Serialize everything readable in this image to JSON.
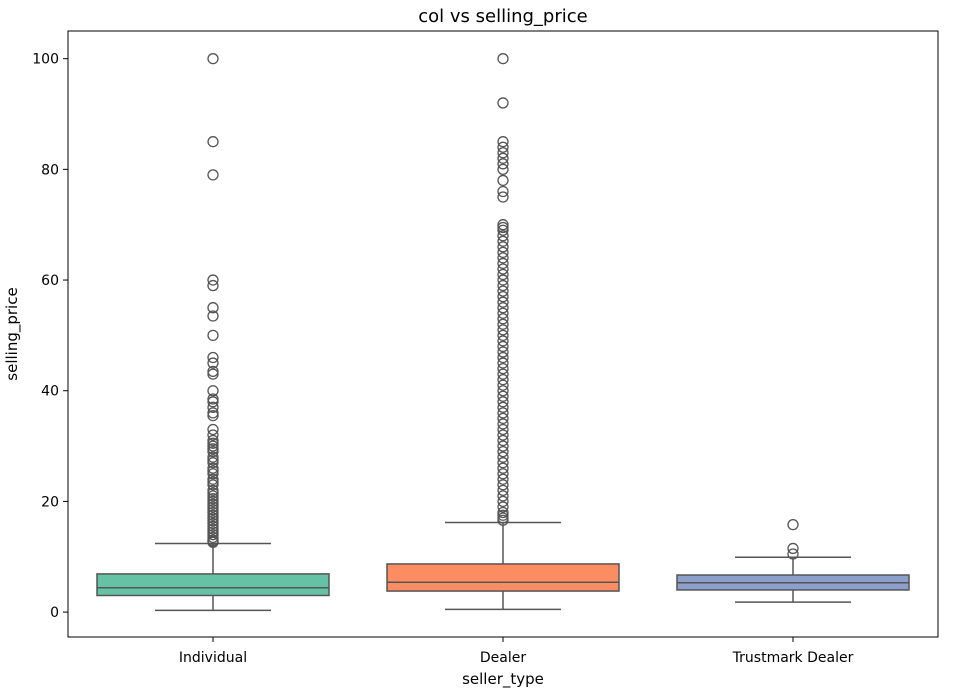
{
  "chart_data": {
    "type": "box",
    "title": "col vs selling_price",
    "xlabel": "seller_type",
    "ylabel": "selling_price",
    "ylim": [
      -4.5,
      105
    ],
    "yticks": [
      0,
      20,
      40,
      60,
      80,
      100
    ],
    "grid": false,
    "legend": "none",
    "categories": [
      "Individual",
      "Dealer",
      "Trustmark Dealer"
    ],
    "colors": [
      "#66c2a5",
      "#fc8d62",
      "#8da0cb"
    ],
    "boxes": [
      {
        "category": "Individual",
        "whisker_low": 0.3,
        "q1": 3.0,
        "median": 4.4,
        "q3": 6.9,
        "whisker_high": 12.4,
        "outliers": [
          100,
          85,
          79,
          60,
          59,
          55,
          53.5,
          50,
          46,
          45,
          43.5,
          43,
          40,
          38.5,
          38,
          37,
          36,
          35.5,
          33,
          32,
          31,
          30.5,
          30,
          29.5,
          29,
          28,
          27.5,
          27,
          26,
          25.5,
          25,
          24,
          23.5,
          23,
          22,
          21.5,
          21,
          20.5,
          20,
          19.5,
          19,
          18.5,
          18,
          17.5,
          17,
          16.5,
          16,
          15.5,
          15,
          14.5,
          14,
          13.5,
          13,
          12.8,
          12.6
        ]
      },
      {
        "category": "Dealer",
        "whisker_low": 0.5,
        "q1": 3.8,
        "median": 5.4,
        "q3": 8.7,
        "whisker_high": 16.2,
        "outliers": [
          100,
          92,
          85,
          84,
          83,
          82,
          81,
          80,
          78,
          76,
          75,
          70,
          69.5,
          69,
          68,
          67,
          66,
          65,
          64,
          63,
          62,
          61,
          60,
          59,
          58,
          57,
          56,
          55,
          54,
          53,
          52,
          51,
          50,
          49,
          48,
          47,
          46,
          45,
          44,
          43,
          42,
          41,
          40,
          39,
          38,
          37,
          36,
          35,
          34,
          33,
          32,
          31,
          30,
          29,
          28,
          27,
          26,
          25,
          24,
          23,
          22,
          21,
          20,
          19,
          18,
          17.5,
          17,
          16.6
        ]
      },
      {
        "category": "Trustmark Dealer",
        "whisker_low": 1.8,
        "q1": 4.0,
        "median": 5.3,
        "q3": 6.7,
        "whisker_high": 9.9,
        "outliers": [
          15.8,
          11.5,
          10.5
        ]
      }
    ]
  }
}
